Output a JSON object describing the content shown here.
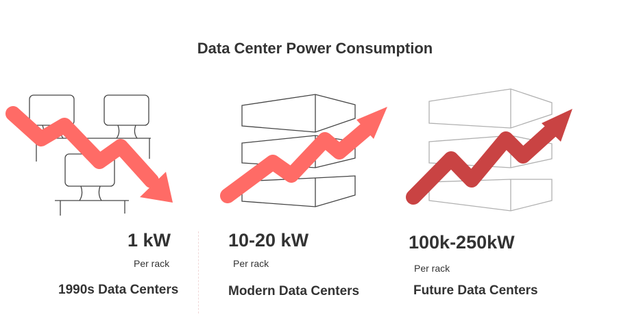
{
  "title": "Data Center Power Consumption",
  "colors": {
    "arrow_light": "#ff6b66",
    "arrow_dark": "#c94343",
    "line_dark": "#444444",
    "line_light": "#b0b0b0"
  },
  "panels": [
    {
      "value": "1 kW",
      "unit": "Per rack",
      "label": "1990s Data Centers",
      "trend": "down",
      "icon": "monitor-desk-icon"
    },
    {
      "value": "10-20 kW",
      "unit": "Per rack",
      "label": "Modern Data Centers",
      "trend": "up",
      "icon": "server-stack-icon"
    },
    {
      "value": "100k-250kW",
      "unit": "Per rack",
      "label": "Future Data Centers",
      "trend": "up",
      "icon": "server-stack-icon"
    }
  ]
}
